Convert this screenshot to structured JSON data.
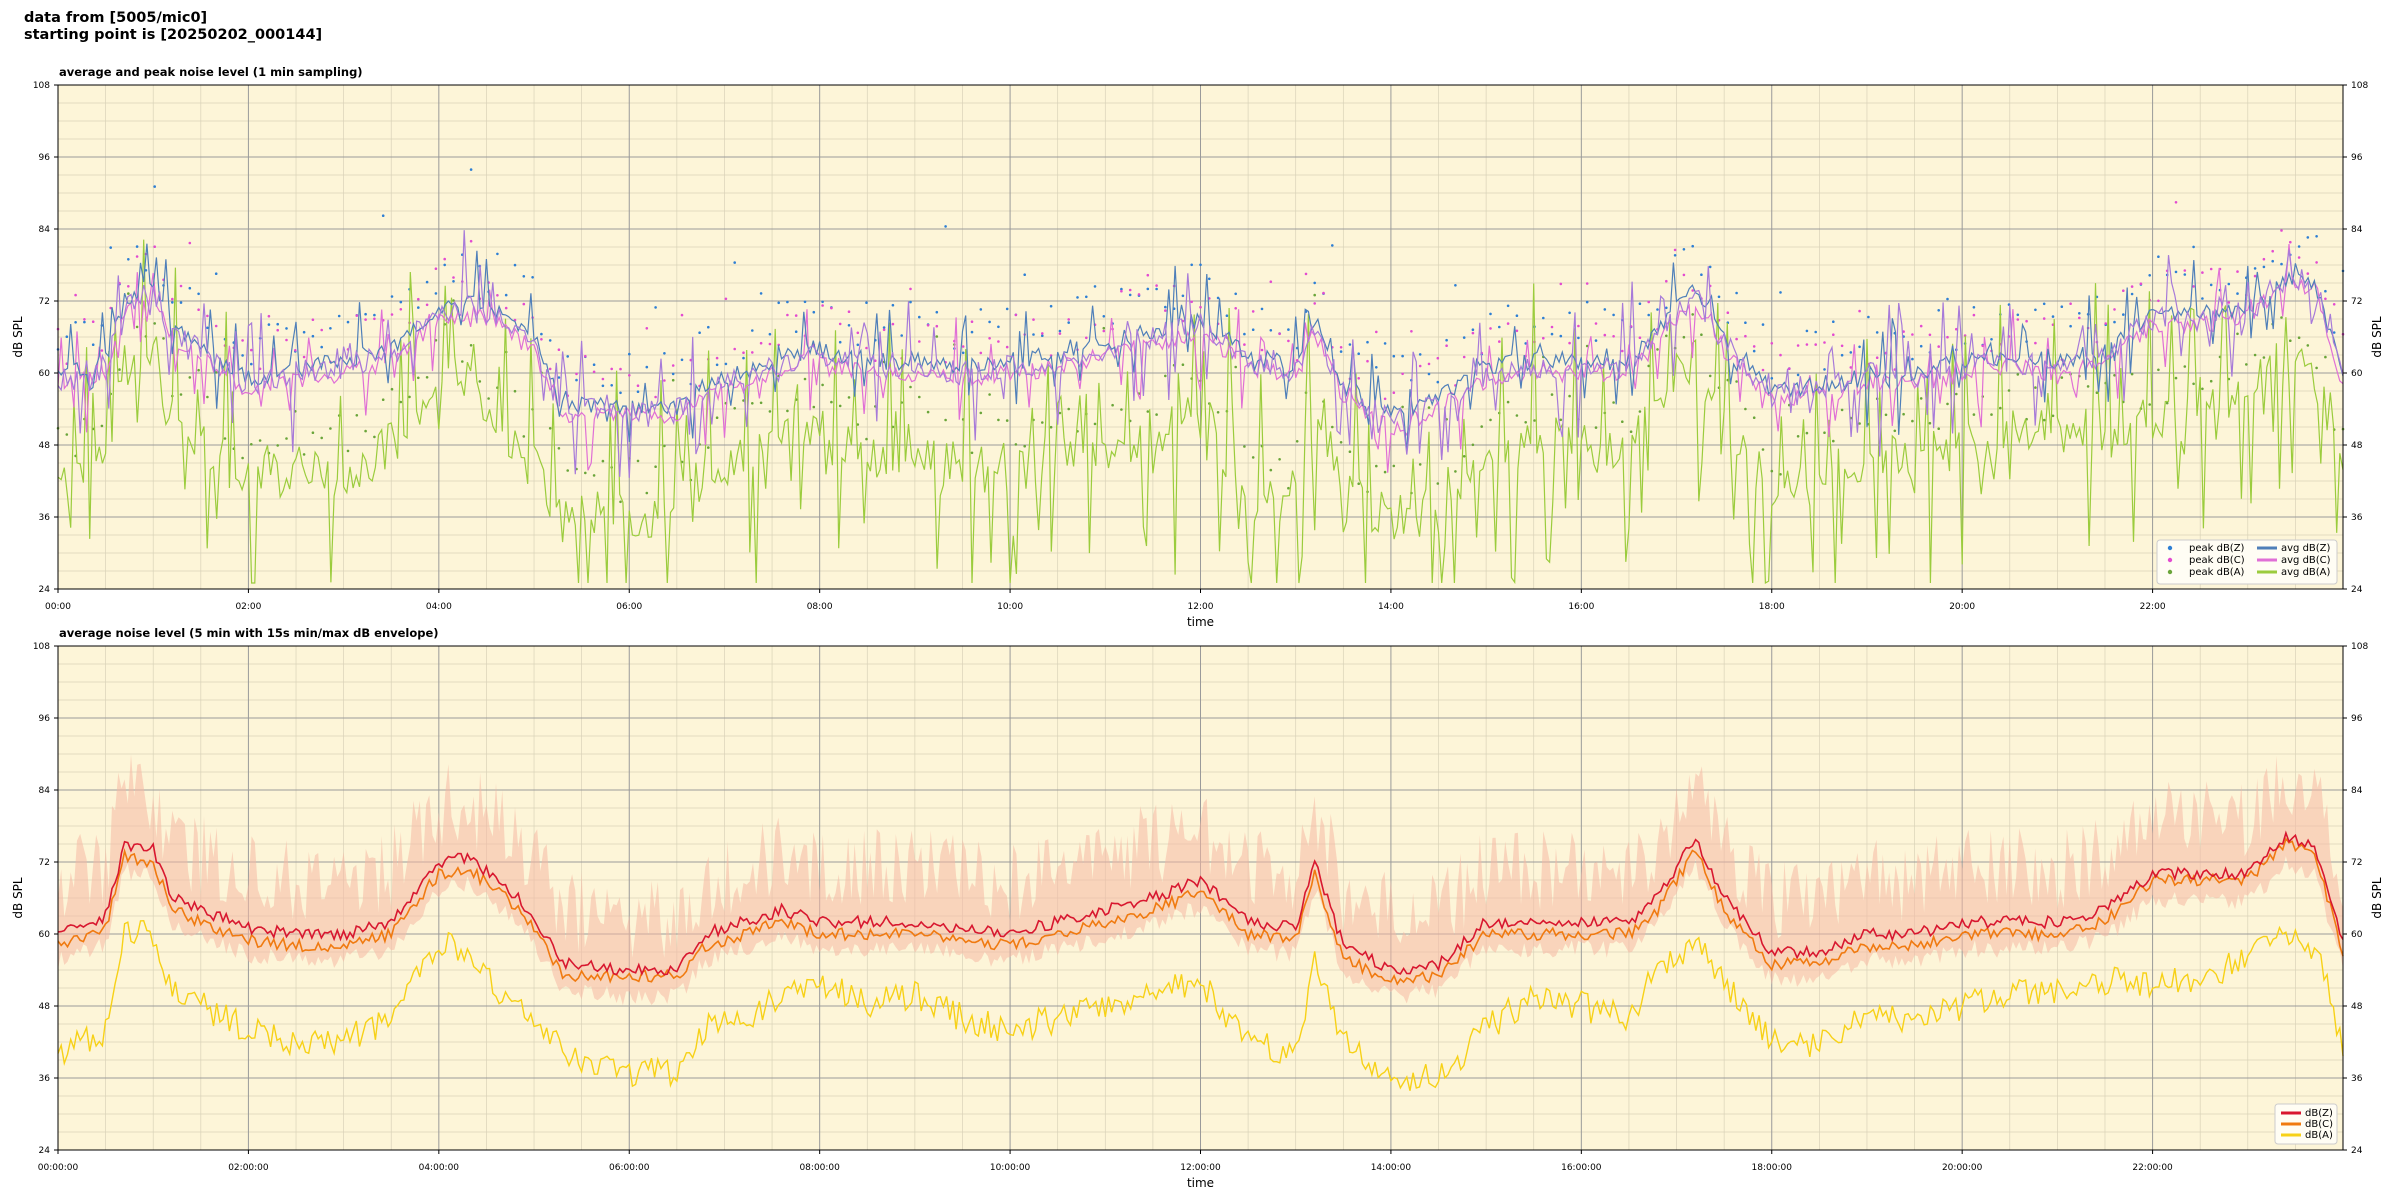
{
  "header": {
    "line1": "data from [5005/mic0]",
    "line2": "starting point is [20250202_000144]"
  },
  "colors": {
    "plot_bg": "#fdf5d8",
    "grid_major": "#9a9a9a",
    "grid_minor": "#d9d2b8",
    "peak_z": "#2e7fd4",
    "peak_c": "#e34bd0",
    "peak_a": "#6aa53a",
    "avg_z": "#4f7fb9",
    "avg_c": "#e06fd6",
    "avg_a": "#9bcc3d",
    "purple_overlay": "#a77ad9",
    "env_z": "#d8172f",
    "env_c": "#f07a10",
    "env_a": "#f7d117",
    "envelope": "#f5b8a4"
  },
  "chart_data": [
    {
      "type": "line",
      "title": "average and peak noise level (1 min sampling)",
      "xlabel": "time",
      "ylabel": "dB SPL",
      "ylim": [
        24,
        108
      ],
      "xlim_hours": [
        0,
        24
      ],
      "yticks": [
        "24",
        "36",
        "48",
        "60",
        "72",
        "84",
        "96",
        "108"
      ],
      "xticks": [
        "00:00",
        "02:00",
        "04:00",
        "06:00",
        "08:00",
        "10:00",
        "12:00",
        "14:00",
        "16:00",
        "18:00",
        "20:00",
        "22:00"
      ],
      "grid": true,
      "legend_position": "bottom-right",
      "legend": [
        "peak dB(Z)",
        "peak dB(C)",
        "peak dB(A)",
        "avg dB(Z)",
        "avg dB(C)",
        "avg dB(A)"
      ],
      "x_hours": [
        0,
        0.5,
        0.7,
        1,
        1.2,
        1.5,
        2,
        2.5,
        3,
        3.5,
        4,
        4.3,
        4.7,
        5,
        5.3,
        6,
        6.5,
        6.8,
        7.2,
        7.6,
        8,
        8.5,
        9,
        9.5,
        10,
        10.5,
        11,
        11.5,
        12,
        12.5,
        13,
        13.2,
        13.5,
        14,
        14.5,
        15,
        15.5,
        16,
        16.5,
        16.8,
        17.2,
        17.5,
        18,
        18.5,
        19,
        19.5,
        20,
        20.5,
        21,
        21.5,
        22,
        22.5,
        23,
        23.4,
        23.7,
        24
      ],
      "series": [
        {
          "name": "avg dB(Z)",
          "values": [
            60,
            62,
            72,
            75,
            68,
            65,
            59,
            61,
            62,
            64,
            71,
            72,
            70,
            66,
            55,
            54,
            54,
            58,
            60,
            63,
            64,
            62,
            62,
            61,
            62,
            63,
            65,
            67,
            69,
            63,
            61,
            69,
            58,
            53,
            56,
            61,
            62,
            62,
            62,
            67,
            74,
            66,
            57,
            58,
            60,
            60,
            62,
            63,
            62,
            64,
            70,
            70,
            70,
            76,
            75,
            60
          ]
        },
        {
          "name": "avg dB(C)",
          "values": [
            58,
            60,
            70,
            73,
            66,
            63,
            57,
            59,
            60,
            62,
            69,
            70,
            68,
            64,
            53,
            53,
            53,
            56,
            58,
            61,
            62,
            60,
            60,
            59,
            60,
            61,
            63,
            65,
            67,
            61,
            59,
            67,
            56,
            51,
            54,
            59,
            60,
            60,
            60,
            65,
            72,
            64,
            55,
            56,
            58,
            58,
            60,
            61,
            60,
            62,
            68,
            68,
            69,
            75,
            74,
            58
          ]
        },
        {
          "name": "avg dB(A)",
          "values": [
            42,
            44,
            62,
            62,
            52,
            48,
            42,
            44,
            43,
            48,
            60,
            58,
            50,
            45,
            38,
            36,
            36,
            44,
            46,
            50,
            52,
            46,
            48,
            44,
            44,
            46,
            48,
            50,
            54,
            40,
            38,
            58,
            40,
            36,
            36,
            44,
            50,
            48,
            46,
            56,
            62,
            52,
            40,
            42,
            46,
            46,
            48,
            50,
            50,
            52,
            52,
            52,
            58,
            62,
            60,
            42
          ]
        }
      ]
    },
    {
      "type": "line",
      "title": "average noise level (5 min with 15s min/max dB envelope)",
      "xlabel": "time",
      "ylabel": "dB SPL",
      "ylim": [
        24,
        108
      ],
      "xlim_hours": [
        0,
        24
      ],
      "yticks": [
        "24",
        "36",
        "48",
        "60",
        "72",
        "84",
        "96",
        "108"
      ],
      "xticks": [
        "00:00:00",
        "02:00:00",
        "04:00:00",
        "06:00:00",
        "08:00:00",
        "10:00:00",
        "12:00:00",
        "14:00:00",
        "16:00:00",
        "18:00:00",
        "20:00:00",
        "22:00:00"
      ],
      "grid": true,
      "legend_position": "bottom-right",
      "legend": [
        "dB(Z)",
        "dB(C)",
        "dB(A)"
      ],
      "x_hours": [
        0,
        0.5,
        0.7,
        1,
        1.2,
        1.5,
        2,
        2.5,
        3,
        3.5,
        4,
        4.3,
        4.7,
        5,
        5.3,
        6,
        6.5,
        6.8,
        7.2,
        7.6,
        8,
        8.5,
        9,
        9.5,
        10,
        10.5,
        11,
        11.5,
        12,
        12.5,
        13,
        13.2,
        13.5,
        14,
        14.5,
        15,
        15.5,
        16,
        16.5,
        16.8,
        17.2,
        17.5,
        18,
        18.5,
        19,
        19.5,
        20,
        20.5,
        21,
        21.5,
        22,
        22.5,
        23,
        23.4,
        23.7,
        24
      ],
      "series": [
        {
          "name": "dB(Z)",
          "values": [
            60,
            63,
            75,
            74,
            66,
            64,
            61,
            60,
            60,
            62,
            72,
            73,
            68,
            63,
            55,
            54,
            54,
            60,
            62,
            64,
            62,
            62,
            62,
            61,
            60,
            62,
            64,
            66,
            69,
            62,
            61,
            72,
            58,
            54,
            55,
            62,
            62,
            62,
            62,
            66,
            76,
            66,
            57,
            57,
            60,
            60,
            62,
            62,
            62,
            64,
            70,
            70,
            70,
            76,
            75,
            59
          ]
        },
        {
          "name": "dB(C)",
          "values": [
            58,
            61,
            73,
            72,
            64,
            62,
            59,
            58,
            58,
            60,
            70,
            71,
            66,
            61,
            53,
            53,
            53,
            58,
            60,
            62,
            60,
            60,
            60,
            59,
            58,
            60,
            62,
            64,
            67,
            60,
            59,
            70,
            56,
            52,
            53,
            60,
            60,
            60,
            60,
            64,
            74,
            64,
            55,
            55,
            58,
            58,
            60,
            60,
            60,
            62,
            69,
            69,
            69,
            75,
            74,
            57
          ]
        },
        {
          "name": "dB(A)",
          "values": [
            40,
            44,
            60,
            60,
            50,
            48,
            44,
            42,
            42,
            46,
            58,
            58,
            48,
            46,
            40,
            37,
            37,
            44,
            46,
            50,
            52,
            48,
            50,
            46,
            44,
            46,
            48,
            50,
            52,
            42,
            40,
            56,
            42,
            36,
            36,
            44,
            50,
            48,
            46,
            54,
            58,
            52,
            42,
            42,
            46,
            46,
            48,
            50,
            50,
            52,
            52,
            52,
            56,
            60,
            58,
            42
          ]
        }
      ]
    }
  ]
}
